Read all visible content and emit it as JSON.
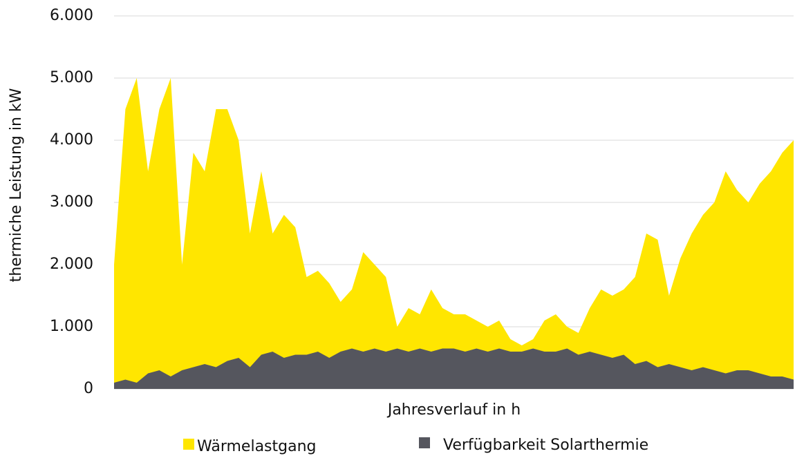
{
  "chart_data": {
    "type": "area",
    "xlabel": "Jahresverlauf in h",
    "ylabel": "thermiche Leistung in kW",
    "x": [
      0,
      146,
      292,
      438,
      584,
      730,
      876,
      1022,
      1168,
      1314,
      1460,
      1606,
      1752,
      1898,
      2044,
      2190,
      2336,
      2482,
      2628,
      2774,
      2920,
      3066,
      3212,
      3358,
      3504,
      3650,
      3796,
      3942,
      4088,
      4234,
      4380,
      4526,
      4672,
      4818,
      4964,
      5110,
      5256,
      5402,
      5548,
      5694,
      5840,
      5986,
      6132,
      6278,
      6424,
      6570,
      6716,
      6862,
      7008,
      7154,
      7300,
      7446,
      7592,
      7738,
      7884,
      8030,
      8176,
      8322,
      8468,
      8614,
      8760
    ],
    "xlim": [
      0,
      8760
    ],
    "ylim": [
      0,
      6000
    ],
    "yticks": [
      0,
      {
        "value": 1000,
        "label": "1.000"
      },
      {
        "value": 2000,
        "label": "2.000"
      },
      {
        "value": 3000,
        "label": "3.000"
      },
      {
        "value": 4000,
        "label": "4.000"
      },
      {
        "value": 5000,
        "label": "5.000"
      },
      {
        "value": 6000,
        "label": "6.000"
      }
    ],
    "grid": true,
    "series": [
      {
        "name": "Wärmelastgang",
        "color": "#ffe600",
        "values": [
          2000,
          4500,
          5000,
          3500,
          4500,
          5000,
          2000,
          3800,
          3500,
          4500,
          4500,
          4000,
          2500,
          3500,
          2500,
          2800,
          2600,
          1800,
          1900,
          1700,
          1400,
          1600,
          2200,
          2000,
          1800,
          1000,
          1300,
          1200,
          1600,
          1300,
          1200,
          1200,
          1100,
          1000,
          1100,
          800,
          700,
          800,
          1100,
          1200,
          1000,
          900,
          1300,
          1600,
          1500,
          1600,
          1800,
          2500,
          2400,
          1500,
          2100,
          2500,
          2800,
          3000,
          3500,
          3200,
          3000,
          3300,
          3500,
          3800,
          4000
        ]
      },
      {
        "name": "Verfügbarkeit Solarthermie",
        "color": "#55565e",
        "values": [
          100,
          150,
          100,
          250,
          300,
          200,
          300,
          350,
          400,
          350,
          450,
          500,
          350,
          550,
          600,
          500,
          550,
          550,
          600,
          500,
          600,
          650,
          600,
          650,
          600,
          650,
          600,
          650,
          600,
          650,
          650,
          600,
          650,
          600,
          650,
          600,
          600,
          650,
          600,
          600,
          650,
          550,
          600,
          550,
          500,
          550,
          400,
          450,
          350,
          400,
          350,
          300,
          350,
          300,
          250,
          300,
          300,
          250,
          200,
          200,
          150
        ]
      }
    ]
  }
}
